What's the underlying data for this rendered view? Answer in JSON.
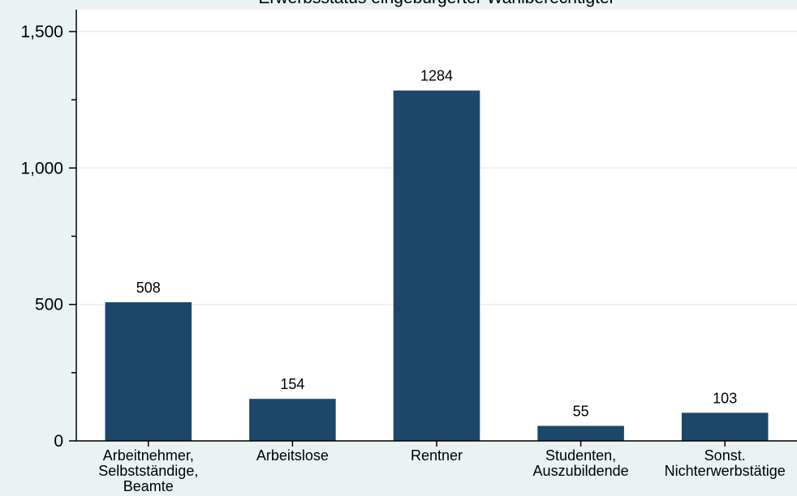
{
  "chart_data": {
    "type": "bar",
    "title": "Erwerbsstatus eingebürgerter Wahlberechtigter",
    "categories": [
      [
        "Arbeitnehmer,",
        "Selbstständige,",
        "Beamte"
      ],
      [
        "Arbeitslose"
      ],
      [
        "Rentner"
      ],
      [
        "Studenten,",
        "Auszubildende"
      ],
      [
        "Sonst.",
        "Nichterwerbstätige"
      ]
    ],
    "values": [
      508,
      154,
      1284,
      55,
      103
    ],
    "data_labels": [
      "508",
      "154",
      "1284",
      "55",
      "103"
    ],
    "ylim": [
      0,
      1580
    ],
    "yticks": [
      0,
      500,
      1000,
      1500
    ],
    "ytick_labels": [
      "0",
      "500",
      "1,000",
      "1,500"
    ],
    "minor_yticks": [
      250,
      750,
      1250
    ],
    "grid": true,
    "colors": {
      "bar": "#1c476a",
      "background": "#eaf2f3",
      "plot_background": "#ffffff",
      "grid": "#e6eef0"
    }
  }
}
